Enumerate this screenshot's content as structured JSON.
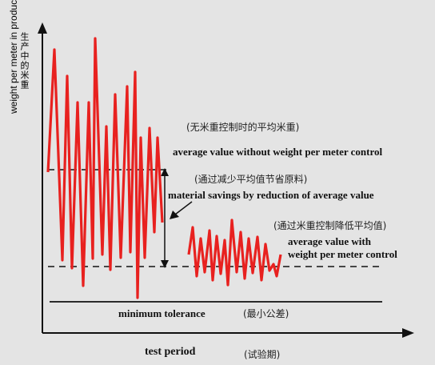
{
  "axis": {
    "y_label_cn": "生产中的米重",
    "y_label_en": "weight per meter in production",
    "x_label_en": "test period",
    "x_label_cn": "(试验期)"
  },
  "labels": {
    "without_control_cn": "(无米重控制时的平均米重)",
    "without_control_en": "average value without weight per meter control",
    "savings_cn": "(通过减少平均值节省原料)",
    "savings_en": "material savings by reduction of average value",
    "with_control_cn": "(通过米重控制降低平均值)",
    "with_control_en_1": "average value with",
    "with_control_en_2": "weight per meter control",
    "min_tol_en": "minimum tolerance",
    "min_tol_cn": "(最小公差)"
  },
  "colors": {
    "signal": "#e8211f",
    "background": "#e4e4e4",
    "ink": "#111111"
  }
}
